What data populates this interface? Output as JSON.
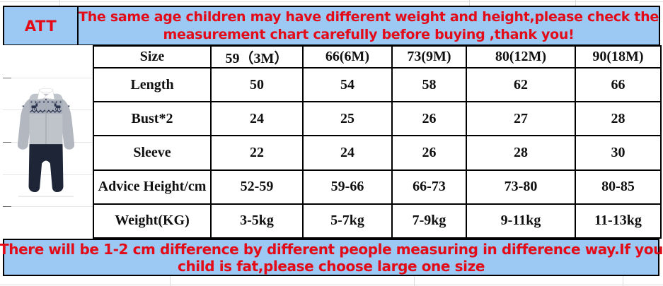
{
  "colors": {
    "banner_background": "#9cc9f4",
    "banner_text_red": "#e30b17",
    "table_border": "#000000",
    "table_text": "#111111",
    "romper_sweater_grey": "#b9bdc5",
    "romper_pants_navy": "#1d2537"
  },
  "top_banner": {
    "att_label": "ATT",
    "message_lines": [
      "The same age children may have different weight and height,please check the",
      "measurement chart carefully before buying ,thank you!"
    ]
  },
  "size_table": {
    "header": [
      "Size",
      "59（3M）",
      "66(6M)",
      "73(9M)",
      "80(12M)",
      "90(18M)"
    ],
    "rows": [
      {
        "label": "Length",
        "values": [
          "50",
          "54",
          "58",
          "62",
          "66"
        ]
      },
      {
        "label": "Bust*2",
        "values": [
          "24",
          "25",
          "26",
          "27",
          "28"
        ]
      },
      {
        "label": "Sleeve",
        "values": [
          "22",
          "24",
          "26",
          "28",
          "30"
        ]
      },
      {
        "label": "Advice Height/cm",
        "values": [
          "52-59",
          "59-66",
          "66-73",
          "73-80",
          "80-85"
        ]
      },
      {
        "label": "Weight(KG)",
        "values": [
          "3-5kg",
          "5-7kg",
          "7-9kg",
          "9-11kg",
          "11-13kg"
        ]
      }
    ]
  },
  "bottom_banner": {
    "message_lines": [
      "There will be 1-2 cm difference by different people measuring in difference way.If you",
      "child is fat,please choose large one size"
    ]
  },
  "product_image": {
    "description": "grey knit baby romper with white shirt collar, fair-isle reindeer yoke and navy pants"
  }
}
